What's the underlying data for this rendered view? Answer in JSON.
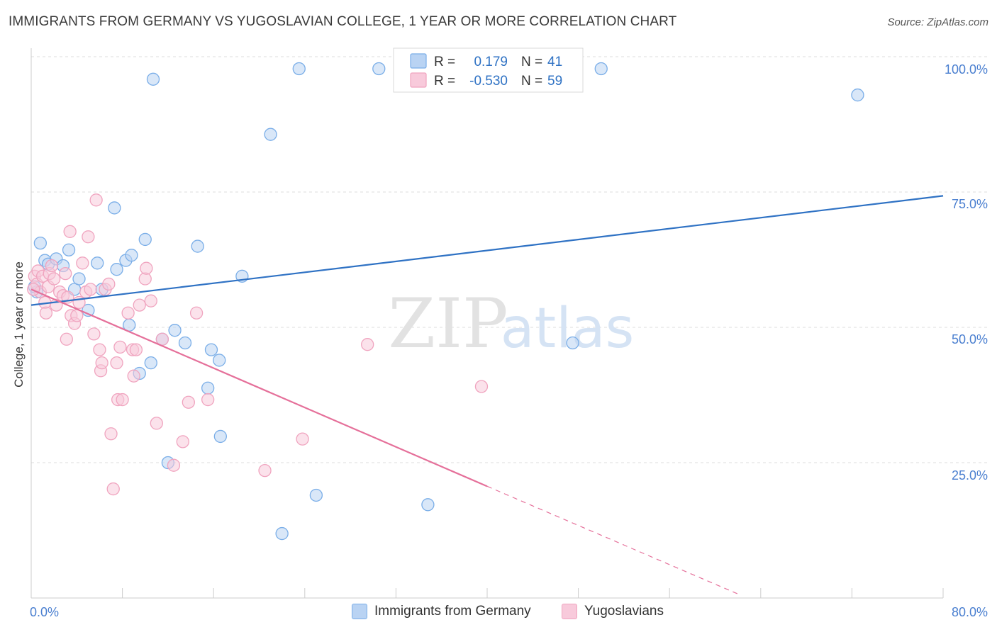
{
  "header": {
    "title": "IMMIGRANTS FROM GERMANY VS YUGOSLAVIAN COLLEGE, 1 YEAR OR MORE CORRELATION CHART",
    "source": "Source: ZipAtlas.com"
  },
  "watermark": {
    "zip": "ZIP",
    "atlas": "atlas"
  },
  "chart_data": {
    "type": "scatter",
    "title": "IMMIGRANTS FROM GERMANY VS YUGOSLAVIAN COLLEGE, 1 YEAR OR MORE CORRELATION CHART",
    "xlabel": "",
    "ylabel": "College, 1 year or more",
    "xlim": [
      0,
      80
    ],
    "ylim": [
      0,
      105
    ],
    "x_tick_labels": [
      "0.0%",
      "80.0%"
    ],
    "y_ticks": [
      25,
      50,
      75,
      100
    ],
    "y_tick_labels": [
      "25.0%",
      "50.0%",
      "75.0%",
      "100.0%"
    ],
    "grid": true,
    "legend_position": "top-center",
    "series": [
      {
        "name": "Immigrants from Germany",
        "color": "#7aaee8",
        "fill": "#b9d3f3",
        "line_color": "#2f72c4",
        "R": "0.179",
        "N": "41",
        "trend": {
          "x": [
            0,
            80
          ],
          "y": [
            55.0,
            75.8
          ]
        },
        "points": [
          [
            0.5,
            57.5
          ],
          [
            0.8,
            66.8
          ],
          [
            1.2,
            63.5
          ],
          [
            1.5,
            62.8
          ],
          [
            2.2,
            63.8
          ],
          [
            2.8,
            62.5
          ],
          [
            3.3,
            65.5
          ],
          [
            3.8,
            58.0
          ],
          [
            4.2,
            60.0
          ],
          [
            5.0,
            54.0
          ],
          [
            5.8,
            63.0
          ],
          [
            6.2,
            58.0
          ],
          [
            7.3,
            73.5
          ],
          [
            7.5,
            61.8
          ],
          [
            8.3,
            63.5
          ],
          [
            8.6,
            51.2
          ],
          [
            8.8,
            64.5
          ],
          [
            9.5,
            42.0
          ],
          [
            10.0,
            67.5
          ],
          [
            10.5,
            44.0
          ],
          [
            10.7,
            98.0
          ],
          [
            11.5,
            48.5
          ],
          [
            12.0,
            25.0
          ],
          [
            12.6,
            50.2
          ],
          [
            13.5,
            47.8
          ],
          [
            14.6,
            66.2
          ],
          [
            15.5,
            39.2
          ],
          [
            15.8,
            46.5
          ],
          [
            16.5,
            44.5
          ],
          [
            16.6,
            30.0
          ],
          [
            18.5,
            60.5
          ],
          [
            21.0,
            87.5
          ],
          [
            22.0,
            11.5
          ],
          [
            23.5,
            100.0
          ],
          [
            25.0,
            18.8
          ],
          [
            30.5,
            100.0
          ],
          [
            34.8,
            17.0
          ],
          [
            47.5,
            47.8
          ],
          [
            50.0,
            100.0
          ],
          [
            72.5,
            95.0
          ],
          [
            0.3,
            58.5
          ]
        ]
      },
      {
        "name": "Yugoslavians",
        "color": "#f0a4bf",
        "fill": "#f8cadb",
        "line_color": "#e5709a",
        "R": "-0.530",
        "N": "59",
        "trend": {
          "x": [
            0,
            40
          ],
          "y": [
            58.0,
            20.5
          ]
        },
        "trend_dashed": {
          "x": [
            40,
            62
          ],
          "y": [
            20.5,
            0
          ]
        },
        "points": [
          [
            0.3,
            60.5
          ],
          [
            0.5,
            59.0
          ],
          [
            0.6,
            61.5
          ],
          [
            0.8,
            57.5
          ],
          [
            1.0,
            60.5
          ],
          [
            1.2,
            55.5
          ],
          [
            1.3,
            53.5
          ],
          [
            1.5,
            58.5
          ],
          [
            1.6,
            61.0
          ],
          [
            1.8,
            62.5
          ],
          [
            2.0,
            60.0
          ],
          [
            2.2,
            55.0
          ],
          [
            2.5,
            57.5
          ],
          [
            2.8,
            56.8
          ],
          [
            3.0,
            61.0
          ],
          [
            3.1,
            48.5
          ],
          [
            3.2,
            56.5
          ],
          [
            3.4,
            69.0
          ],
          [
            3.5,
            53.0
          ],
          [
            3.8,
            51.5
          ],
          [
            4.0,
            53.0
          ],
          [
            4.2,
            55.5
          ],
          [
            4.5,
            63.0
          ],
          [
            4.8,
            57.5
          ],
          [
            5.0,
            68.0
          ],
          [
            5.2,
            58.0
          ],
          [
            5.5,
            49.5
          ],
          [
            5.7,
            75.0
          ],
          [
            6.0,
            46.5
          ],
          [
            6.1,
            42.5
          ],
          [
            6.2,
            44.0
          ],
          [
            6.5,
            58.0
          ],
          [
            6.8,
            59.0
          ],
          [
            7.0,
            30.5
          ],
          [
            7.2,
            20.0
          ],
          [
            7.5,
            44.0
          ],
          [
            7.6,
            37.0
          ],
          [
            7.8,
            47.0
          ],
          [
            8.0,
            37.0
          ],
          [
            8.5,
            53.5
          ],
          [
            8.9,
            46.5
          ],
          [
            9.0,
            41.5
          ],
          [
            9.2,
            46.5
          ],
          [
            9.5,
            55.0
          ],
          [
            10.0,
            60.0
          ],
          [
            10.1,
            62.0
          ],
          [
            10.5,
            55.8
          ],
          [
            11.0,
            32.5
          ],
          [
            11.5,
            48.5
          ],
          [
            12.5,
            24.5
          ],
          [
            13.3,
            29.0
          ],
          [
            13.8,
            36.5
          ],
          [
            14.5,
            53.5
          ],
          [
            15.5,
            37.0
          ],
          [
            20.5,
            23.5
          ],
          [
            23.8,
            29.5
          ],
          [
            29.5,
            47.5
          ],
          [
            39.5,
            39.5
          ],
          [
            0.2,
            58.0
          ]
        ]
      }
    ]
  },
  "legend": {
    "items": [
      {
        "r_label": "R =",
        "r_value": "0.179",
        "n_label": "N =",
        "n_value": "41"
      },
      {
        "r_label": "R =",
        "r_value": "-0.530",
        "n_label": "N =",
        "n_value": "59"
      }
    ]
  },
  "bottom_legend": {
    "items": [
      {
        "label": "Immigrants from Germany"
      },
      {
        "label": "Yugoslavians"
      }
    ]
  }
}
